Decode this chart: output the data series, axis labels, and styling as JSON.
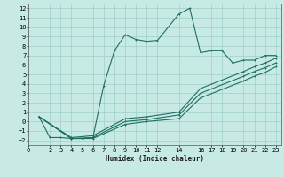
{
  "title": "",
  "xlabel": "Humidex (Indice chaleur)",
  "ylabel": "",
  "bg_color": "#c8eae4",
  "grid_color": "#9dcfca",
  "line_color": "#1e6e64",
  "xlim": [
    0,
    23.5
  ],
  "ylim": [
    -2.5,
    12.5
  ],
  "yticks": [
    -2,
    -1,
    0,
    1,
    2,
    3,
    4,
    5,
    6,
    7,
    8,
    9,
    10,
    11,
    12
  ],
  "xticks": [
    0,
    2,
    3,
    4,
    5,
    6,
    7,
    8,
    9,
    10,
    11,
    12,
    14,
    16,
    17,
    18,
    19,
    20,
    21,
    22,
    23
  ],
  "series": [
    {
      "x": [
        1,
        2,
        3,
        4,
        5,
        6,
        7,
        8,
        9,
        10,
        11,
        12,
        14,
        15,
        16,
        17,
        18,
        19,
        20,
        21,
        22,
        23
      ],
      "y": [
        0.5,
        -1.7,
        -1.7,
        -1.8,
        -1.8,
        -1.7,
        3.8,
        7.5,
        9.2,
        8.7,
        8.5,
        8.6,
        11.4,
        12.0,
        7.3,
        7.5,
        7.5,
        6.2,
        6.5,
        6.5,
        7.0,
        7.0
      ]
    },
    {
      "x": [
        1,
        4,
        6,
        9,
        11,
        14,
        16,
        20,
        21,
        22,
        23
      ],
      "y": [
        0.5,
        -1.7,
        -1.5,
        0.3,
        0.5,
        1.0,
        3.5,
        5.3,
        5.8,
        6.2,
        6.7
      ]
    },
    {
      "x": [
        1,
        4,
        6,
        9,
        11,
        14,
        16,
        20,
        21,
        22,
        23
      ],
      "y": [
        0.5,
        -1.8,
        -1.7,
        0.0,
        0.2,
        0.7,
        3.0,
        4.8,
        5.3,
        5.7,
        6.2
      ]
    },
    {
      "x": [
        1,
        4,
        6,
        9,
        11,
        14,
        16,
        20,
        21,
        22,
        23
      ],
      "y": [
        0.5,
        -1.8,
        -1.8,
        -0.3,
        0.0,
        0.3,
        2.5,
        4.3,
        4.8,
        5.2,
        5.8
      ]
    }
  ]
}
